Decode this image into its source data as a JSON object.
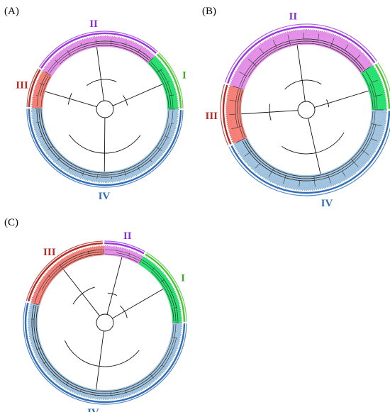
{
  "panels": [
    {
      "id": "A",
      "label": "(A)",
      "clusters": [
        {
          "name": "I",
          "from_deg": 0,
          "to_deg": 47,
          "color": "#1fe06a",
          "arc_color": "#4cc632",
          "text_color": "#3fa82a"
        },
        {
          "name": "II",
          "from_deg": 47,
          "to_deg": 148,
          "color": "#e58be8",
          "arc_color": "#9b36e0",
          "text_color": "#8a2fd0"
        },
        {
          "name": "III",
          "from_deg": 148,
          "to_deg": 179,
          "color": "#f47a72",
          "arc_color": "#b52a22",
          "text_color": "#b52a22"
        },
        {
          "name": "IV",
          "from_deg": 179,
          "to_deg": 360,
          "color": "#9cc2de",
          "arc_color": "#2f6db8",
          "text_color": "#2f6db8"
        }
      ]
    },
    {
      "id": "B",
      "label": "(B)",
      "clusters": [
        {
          "name": "I",
          "from_deg": 0,
          "to_deg": 34,
          "color": "#1fe06a",
          "arc_color": "#4cc632",
          "text_color": "#3fa82a"
        },
        {
          "name": "II",
          "from_deg": 34,
          "to_deg": 162,
          "color": "#e58be8",
          "arc_color": "#9b36e0",
          "text_color": "#8a2fd0"
        },
        {
          "name": "III",
          "from_deg": 162,
          "to_deg": 205,
          "color": "#f47a72",
          "arc_color": "#b52a22",
          "text_color": "#b52a22"
        },
        {
          "name": "IV",
          "from_deg": 205,
          "to_deg": 360,
          "color": "#9cc2de",
          "arc_color": "#2f6db8",
          "text_color": "#2f6db8"
        }
      ]
    },
    {
      "id": "C",
      "label": "(C)",
      "clusters": [
        {
          "name": "I",
          "from_deg": 0,
          "to_deg": 60,
          "color": "#1fe06a",
          "arc_color": "#4cc632",
          "text_color": "#3fa82a"
        },
        {
          "name": "II",
          "from_deg": 60,
          "to_deg": 91,
          "color": "#e58be8",
          "arc_color": "#9b36e0",
          "text_color": "#8a2fd0"
        },
        {
          "name": "III",
          "from_deg": 91,
          "to_deg": 165,
          "color": "#f47a72",
          "arc_color": "#b52a22",
          "text_color": "#b52a22"
        },
        {
          "name": "IV",
          "from_deg": 165,
          "to_deg": 360,
          "color": "#9cc2de",
          "arc_color": "#2f6db8",
          "text_color": "#2f6db8"
        }
      ]
    }
  ]
}
